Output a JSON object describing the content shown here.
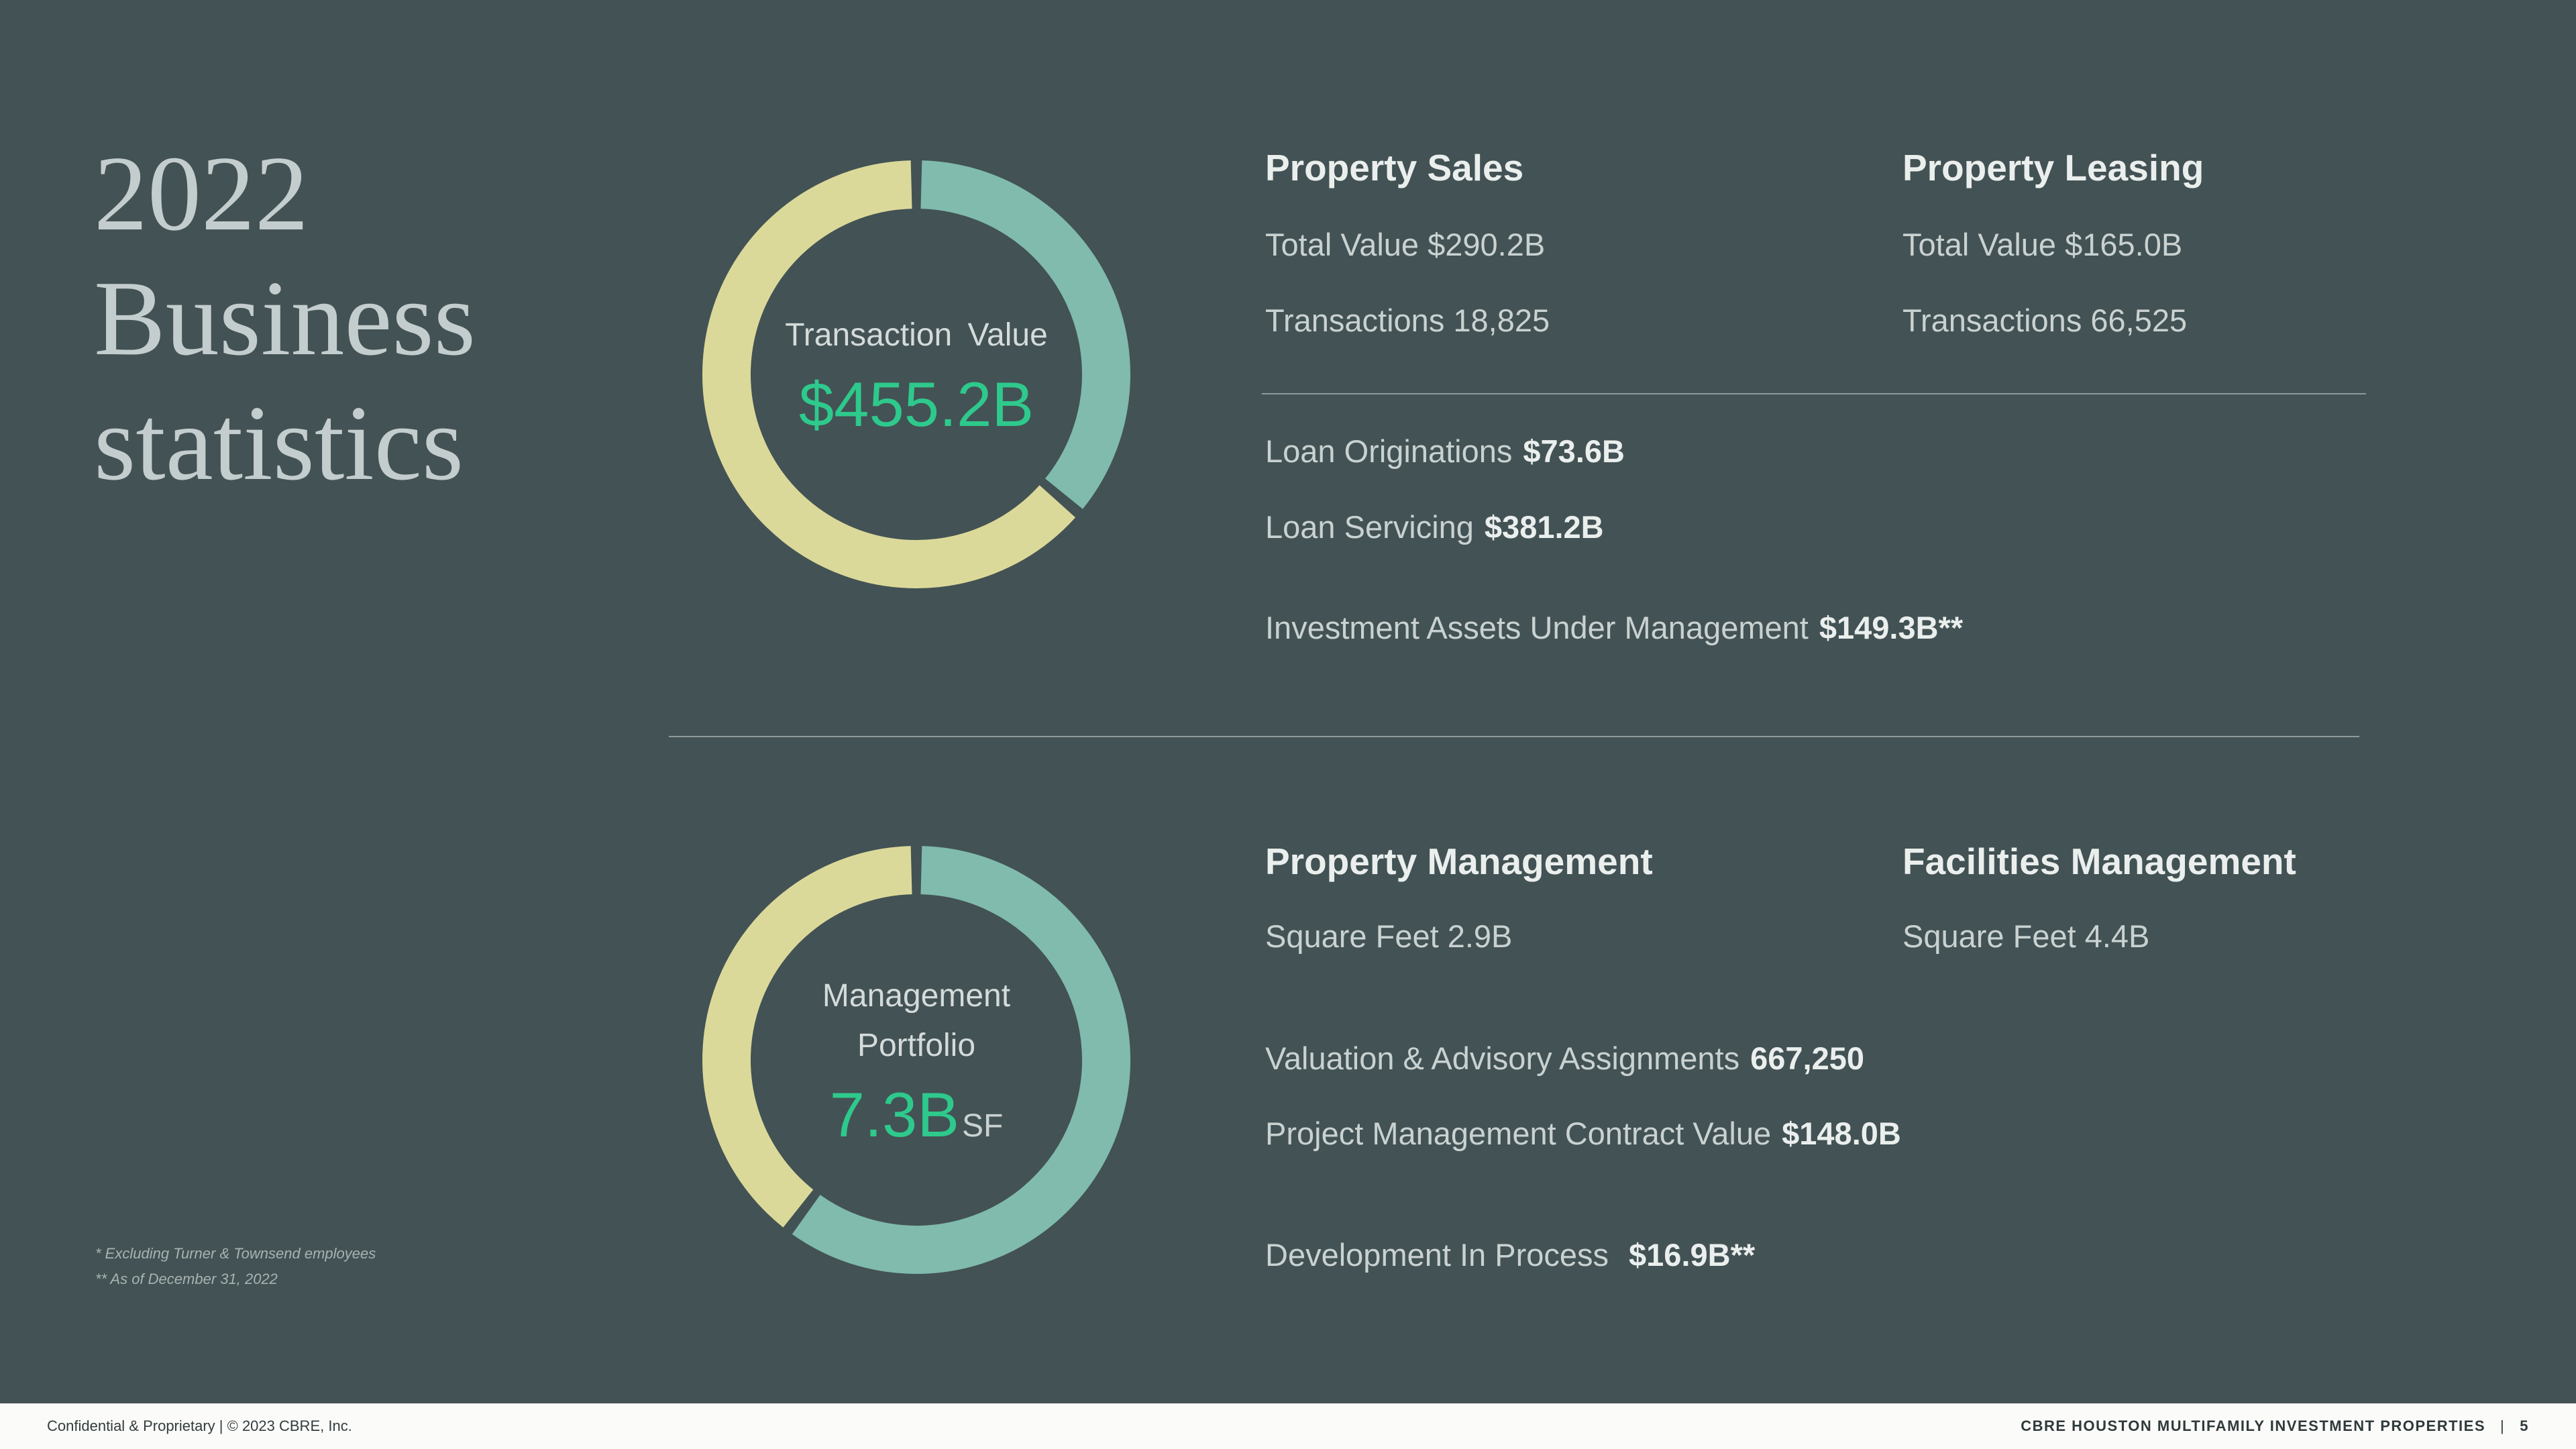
{
  "theme": {
    "background": "#435254",
    "accent_green": "#2EC98C",
    "donut_teal": "#80BBAD",
    "donut_wheat": "#DBD99A"
  },
  "slide": {
    "title_lines": [
      "2022",
      "Business",
      "statistics"
    ]
  },
  "chart_data": [
    {
      "type": "donut",
      "id": "transaction-value",
      "center_lines": [
        "Transaction  Value"
      ],
      "value_label": "$455.2B",
      "total": 455.2,
      "units": "USD billions",
      "segments": [
        {
          "name": "Property Leasing",
          "value": 165.0,
          "color": "#80BBAD"
        },
        {
          "name": "Property Sales",
          "value": 290.2,
          "color": "#DBD99A"
        }
      ]
    },
    {
      "type": "donut",
      "id": "management-portfolio",
      "center_lines": [
        "Management",
        "Portfolio"
      ],
      "value_label": "7.3B",
      "value_suffix": "SF",
      "total": 7.3,
      "units": "billion square feet",
      "segments": [
        {
          "name": "Facilities Management",
          "value": 4.4,
          "color": "#80BBAD"
        },
        {
          "name": "Property Management",
          "value": 2.9,
          "color": "#DBD99A"
        }
      ]
    }
  ],
  "top_section": {
    "col1": {
      "heading": "Property Sales",
      "row1": "Total Value $290.2B",
      "row2": "Transactions 18,825"
    },
    "col2": {
      "heading": "Property Leasing",
      "row1": "Total Value $165.0B",
      "row2": "Transactions 66,525"
    },
    "loan_originations": {
      "label": "Loan Originations",
      "value": "$73.6B"
    },
    "loan_servicing": {
      "label": "Loan Servicing",
      "value": "$381.2B"
    },
    "aum": {
      "label": "Investment Assets Under Management",
      "value": "$149.3B**"
    }
  },
  "bottom_section": {
    "col1": {
      "heading": "Property Management",
      "row1": "Square Feet 2.9B"
    },
    "col2": {
      "heading": "Facilities Management",
      "row1": "Square Feet 4.4B"
    },
    "valuation": {
      "label": "Valuation & Advisory Assignments",
      "value": "667,250"
    },
    "project_mgmt": {
      "label": "Project Management Contract Value",
      "value": "$148.0B"
    },
    "development": {
      "label": "Development In Process",
      "value": "$16.9B**"
    }
  },
  "footnotes": [
    "* Excluding Turner & Townsend employees",
    "** As of December 31, 2022"
  ],
  "footer": {
    "left": "Confidential & Proprietary  |  © 2023 CBRE, Inc.",
    "right_title": "CBRE HOUSTON MULTIFAMILY INVESTMENT PROPERTIES",
    "separator": "|",
    "page_number": "5"
  }
}
